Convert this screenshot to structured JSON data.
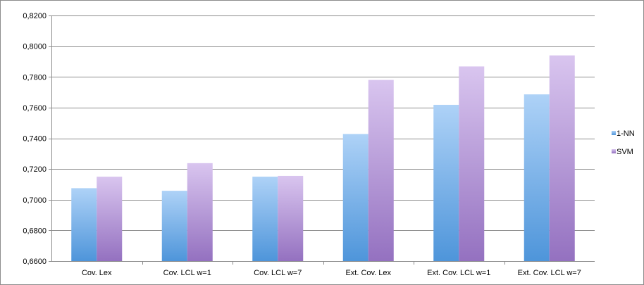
{
  "chart_data": {
    "type": "bar",
    "title": "",
    "xlabel": "",
    "ylabel": "",
    "categories": [
      "Cov. Lex",
      "Cov. LCL w=1",
      "Cov. LCL w=7",
      "Ext. Cov. Lex",
      "Ext. Cov. LCL w=1",
      "Ext. Cov. LCL w=7"
    ],
    "series": [
      {
        "name": "1-NN",
        "values": [
          0.7075,
          0.7058,
          0.715,
          0.7428,
          0.7618,
          0.7686
        ],
        "color_top": "#aed2f7",
        "color_bottom": "#4e95da"
      },
      {
        "name": "SVM",
        "values": [
          0.715,
          0.7238,
          0.7155,
          0.778,
          0.7868,
          0.794
        ],
        "color_top": "#d9c5ef",
        "color_bottom": "#9471c0"
      }
    ],
    "ylim": [
      0.66,
      0.82
    ],
    "yticks": [
      0.66,
      0.68,
      0.7,
      0.72,
      0.74,
      0.76,
      0.78,
      0.8,
      0.82
    ],
    "ytick_labels": [
      "0,6600",
      "0,6800",
      "0,7000",
      "0,7200",
      "0,7400",
      "0,7600",
      "0,7800",
      "0,8000",
      "0,8200"
    ],
    "grid": true,
    "legend_position": "right"
  }
}
